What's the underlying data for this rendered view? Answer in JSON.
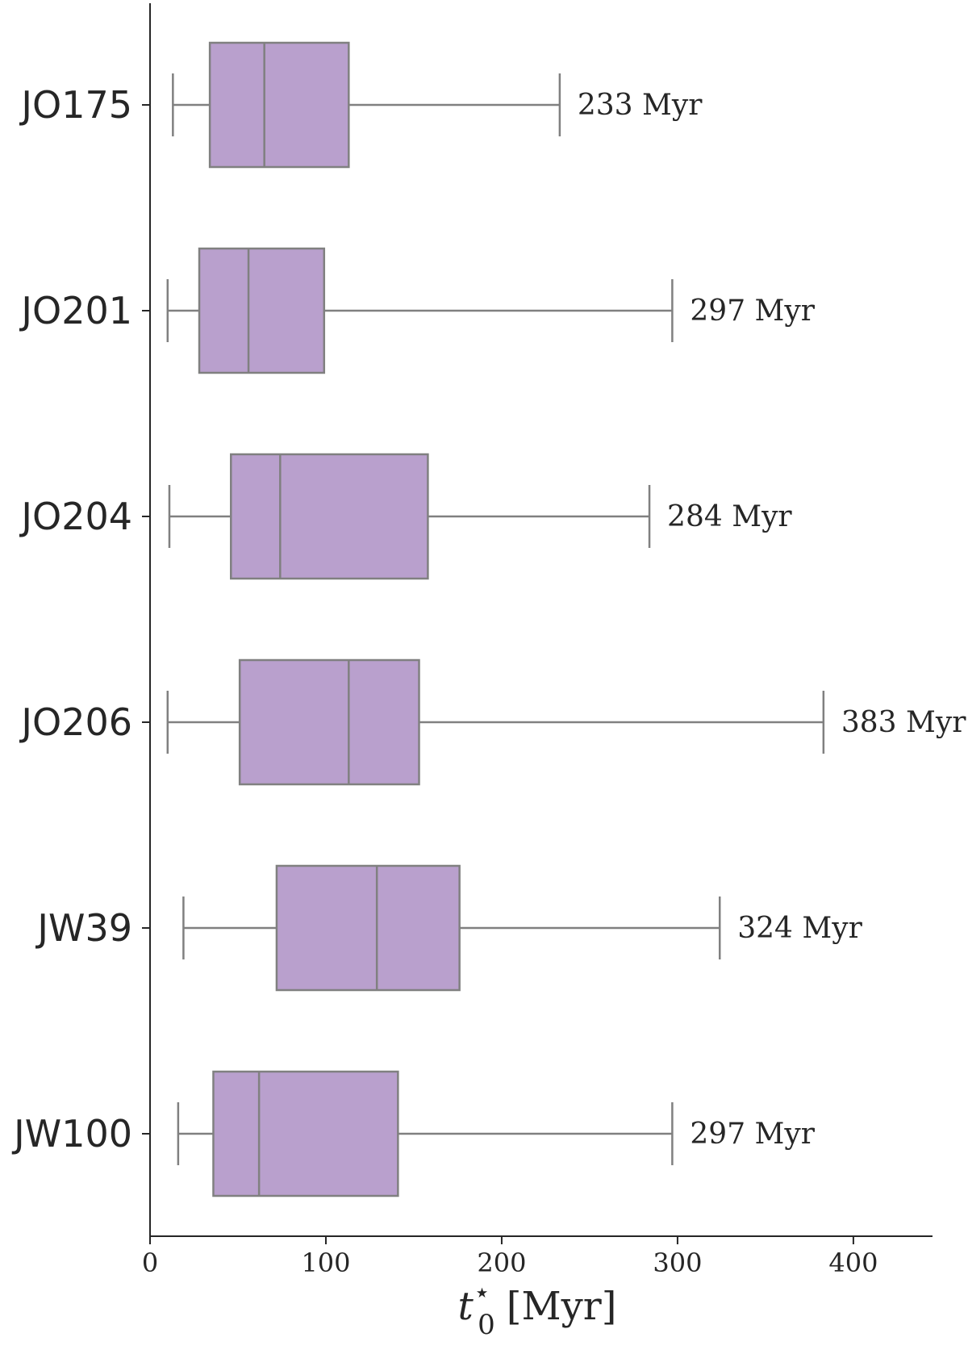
{
  "chart_data": {
    "type": "box",
    "orientation": "horizontal",
    "box_color": "#b9a0cd",
    "line_color": "#808080",
    "xlim": [
      0,
      445
    ],
    "xticks": [
      0,
      100,
      200,
      300,
      400
    ],
    "xtick_labels": [
      "0",
      "100",
      "200",
      "300",
      "400"
    ],
    "xlabel": {
      "symbol": "t",
      "superscript": "⋆",
      "subscript": "0",
      "unit": "[Myr]"
    },
    "categories": [
      "JO175",
      "JO201",
      "JO204",
      "JO206",
      "JW39",
      "JW100"
    ],
    "boxes": [
      {
        "name": "JO175",
        "whislo": 13,
        "q1": 34,
        "med": 65,
        "q3": 113,
        "whishi": 233,
        "label": "233 Myr"
      },
      {
        "name": "JO201",
        "whislo": 10,
        "q1": 28,
        "med": 56,
        "q3": 99,
        "whishi": 297,
        "label": "297 Myr"
      },
      {
        "name": "JO204",
        "whislo": 11,
        "q1": 46,
        "med": 74,
        "q3": 158,
        "whishi": 284,
        "label": "284 Myr"
      },
      {
        "name": "JO206",
        "whislo": 10,
        "q1": 51,
        "med": 113,
        "q3": 153,
        "whishi": 383,
        "label": "383 Myr"
      },
      {
        "name": "JW39",
        "whislo": 19,
        "q1": 72,
        "med": 129,
        "q3": 176,
        "whishi": 324,
        "label": "324 Myr"
      },
      {
        "name": "JW100",
        "whislo": 16,
        "q1": 36,
        "med": 62,
        "q3": 141,
        "whishi": 297,
        "label": "297 Myr"
      }
    ]
  }
}
